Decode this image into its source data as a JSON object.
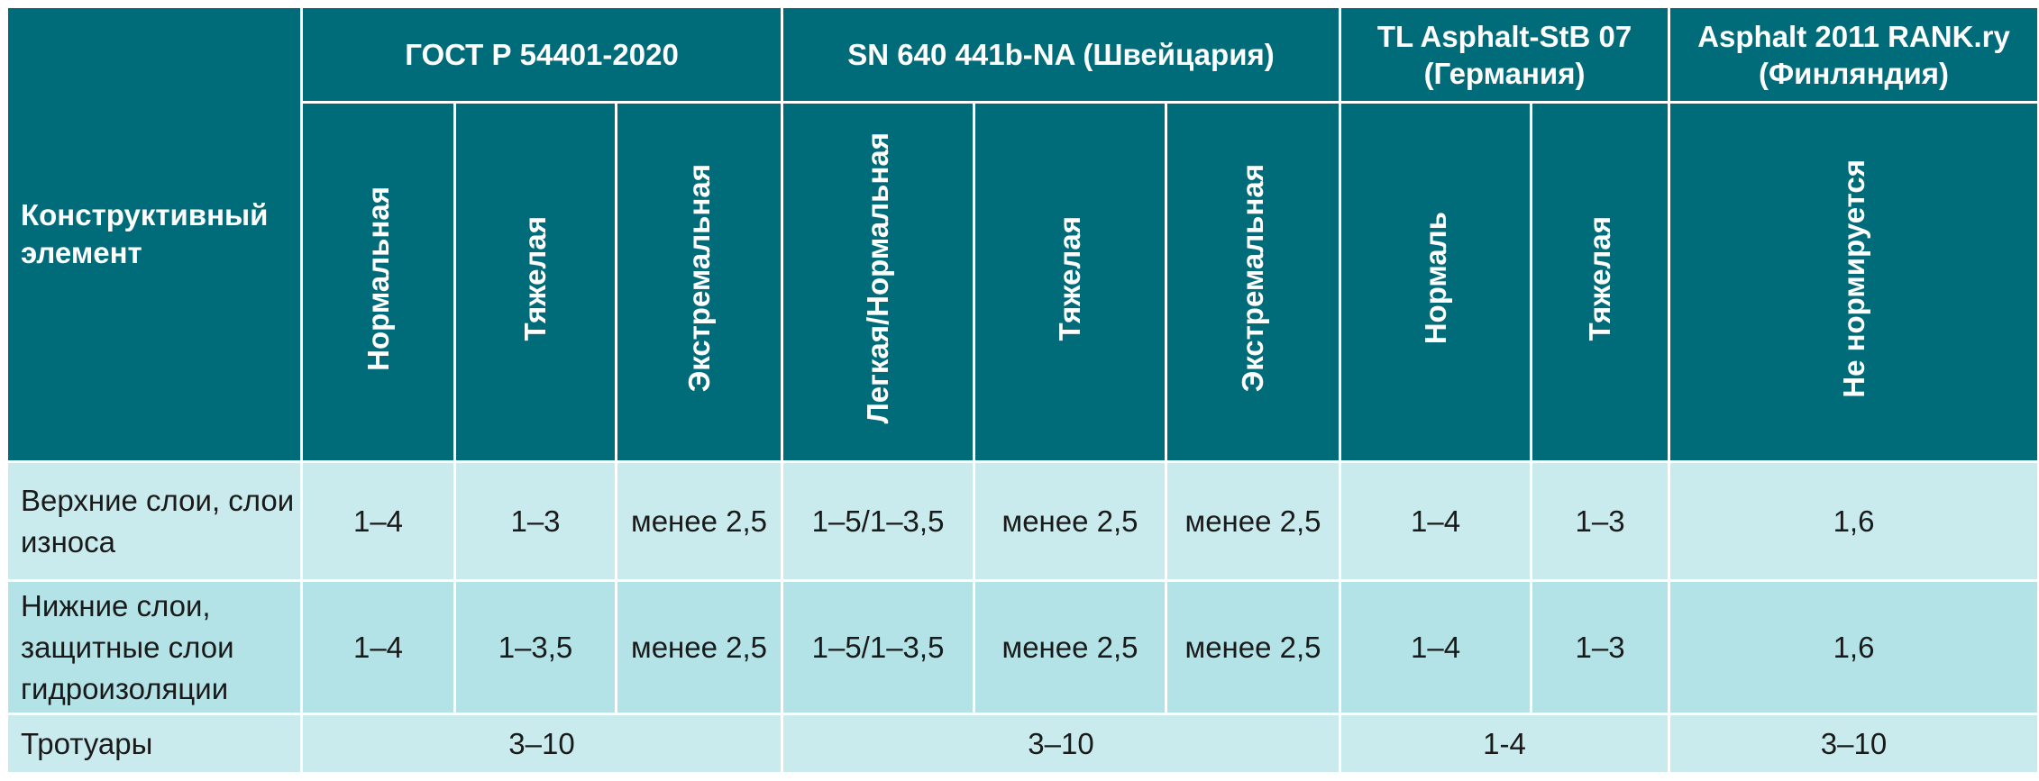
{
  "table": {
    "corner_header": "Конструктивный элемент",
    "groups": [
      {
        "title": "ГОСТ Р 54401-2020",
        "subs": [
          "Нормальная",
          "Тяжелая",
          "Экстремальная"
        ]
      },
      {
        "title": "SN 640 441b-NA (Швейцария)",
        "subs": [
          "Легкая/Нормальная",
          "Тяжелая",
          "Экстремальная"
        ]
      },
      {
        "title": "TL Asphalt-StB 07 (Германия)",
        "subs": [
          "Нормаль",
          "Тяжелая"
        ]
      },
      {
        "title": "Asphalt 2011 RANK.ry (Финляндия)",
        "subs": [
          "Не нормируется"
        ]
      }
    ],
    "rows": [
      {
        "label": "Верхние слои, слои износа",
        "cells": [
          "1–4",
          "1–3",
          "менее 2,5",
          "1–5/1–3,5",
          "менее 2,5",
          "менее 2,5",
          "1–4",
          "1–3",
          "1,6"
        ]
      },
      {
        "label": "Нижние слои, защитные слои гидроизоляции",
        "cells": [
          "1–4",
          "1–3,5",
          "менее 2,5",
          "1–5/1–3,5",
          "менее 2,5",
          "менее 2,5",
          "1–4",
          "1–3",
          "1,6"
        ]
      },
      {
        "label": "Тротуары",
        "cells": [
          "3–10",
          "3–10",
          "1-4",
          "3–10"
        ]
      }
    ]
  }
}
